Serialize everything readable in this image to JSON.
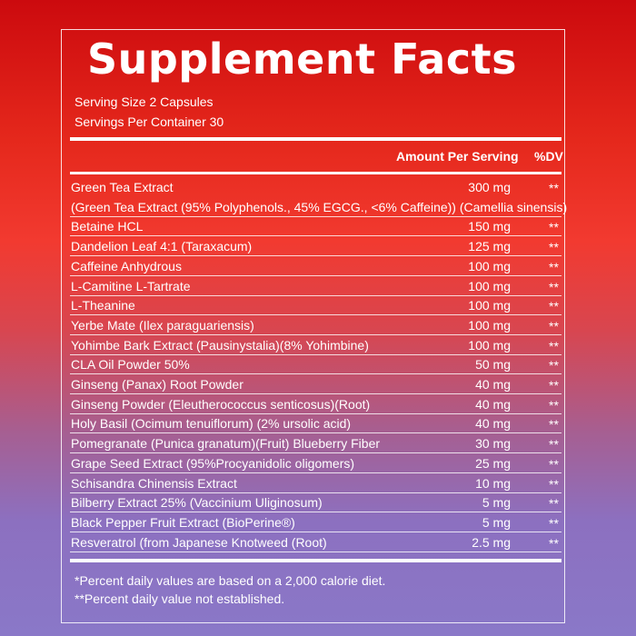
{
  "label": {
    "title": "Supplement Facts",
    "serving_size": "Serving Size 2 Capsules",
    "servings_per_container": "Servings Per Container 30",
    "header_amount": "Amount Per Serving",
    "header_dv": "%DV"
  },
  "ingredients": [
    {
      "name": "Green Tea Extract",
      "amount": "300 mg",
      "dv": "**"
    },
    {
      "name": "(Green Tea Extract (95% Polyphenols., 45% EGCG., <6% Caffeine)) (Camellia sinensis)",
      "amount": "",
      "dv": ""
    },
    {
      "name": "Betaine HCL",
      "amount": "150 mg",
      "dv": "**"
    },
    {
      "name": "Dandelion Leaf 4:1 (Taraxacum)",
      "amount": "125 mg",
      "dv": "**"
    },
    {
      "name": "Caffeine Anhydrous",
      "amount": "100 mg",
      "dv": "**"
    },
    {
      "name": "L-Camitine L-Tartrate",
      "amount": "100 mg",
      "dv": "**"
    },
    {
      "name": "L-Theanine",
      "amount": "100 mg",
      "dv": "**"
    },
    {
      "name": "Yerbe Mate (Ilex paraguariensis)",
      "amount": "100 mg",
      "dv": "**"
    },
    {
      "name": "Yohimbe Bark Extract (Pausinystalia)(8% Yohimbine)",
      "amount": "100 mg",
      "dv": "**"
    },
    {
      "name": "CLA Oil Powder 50%",
      "amount": "50 mg",
      "dv": "**"
    },
    {
      "name": "Ginseng (Panax) Root Powder",
      "amount": "40 mg",
      "dv": "**"
    },
    {
      "name": "Ginseng Powder (Eleutherococcus senticosus)(Root)",
      "amount": "40 mg",
      "dv": "**"
    },
    {
      "name": "Holy Basil (Ocimum tenuiflorum) (2% ursolic acid)",
      "amount": "40 mg",
      "dv": "**"
    },
    {
      "name": "Pomegranate (Punica granatum)(Fruit) Blueberry Fiber",
      "amount": "30 mg",
      "dv": "**"
    },
    {
      "name": "Grape Seed Extract (95%Procyanidolic oligomers)",
      "amount": "25 mg",
      "dv": "**"
    },
    {
      "name": "Schisandra Chinensis Extract",
      "amount": "10 mg",
      "dv": "**"
    },
    {
      "name": "Bilberry Extract 25% (Vaccinium Uliginosum)",
      "amount": "5 mg",
      "dv": "**"
    },
    {
      "name": "Black Pepper Fruit Extract (BioPerine®)",
      "amount": "5 mg",
      "dv": "**"
    },
    {
      "name": "Resveratrol (from Japanese Knotweed (Root)",
      "amount": "2.5 mg",
      "dv": "**"
    }
  ],
  "footnotes": {
    "note1": "*Percent daily values are based on a 2,000 calorie diet.",
    "note2": "**Percent daily value not established."
  }
}
